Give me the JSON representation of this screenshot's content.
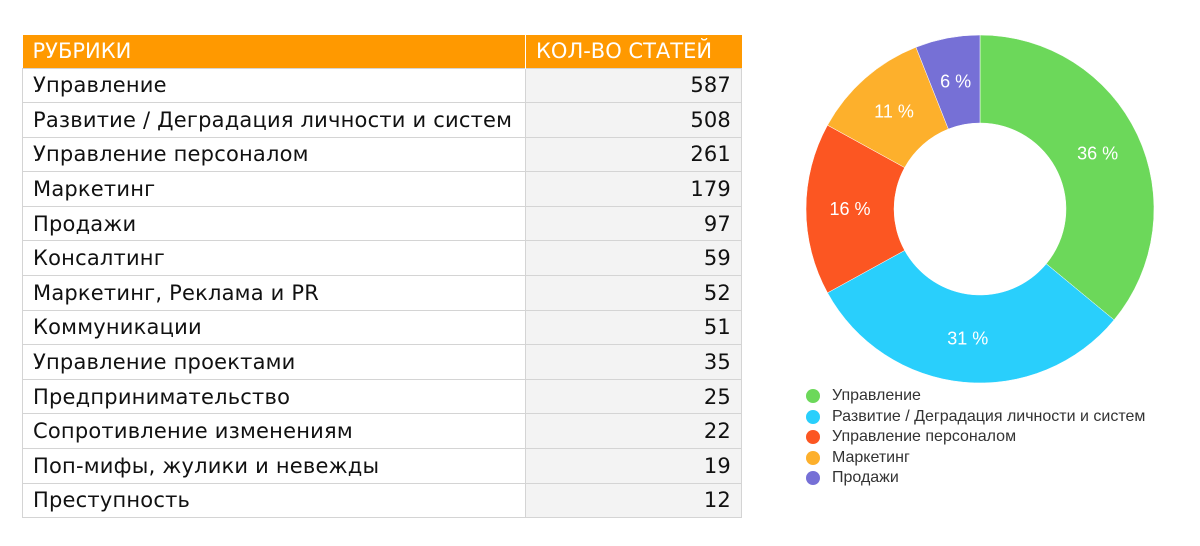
{
  "table": {
    "headers": {
      "category": "РУБРИКИ",
      "count": "КОЛ-ВО СТАТЕЙ"
    },
    "rows": [
      {
        "name": "Управление",
        "value": "587"
      },
      {
        "name": "Развитие / Деградация личности и систем",
        "value": "508"
      },
      {
        "name": "Управление персоналом",
        "value": "261"
      },
      {
        "name": "Маркетинг",
        "value": "179"
      },
      {
        "name": "Продажи",
        "value": "97"
      },
      {
        "name": "Консалтинг",
        "value": "59"
      },
      {
        "name": "Маркетинг, Реклама и PR",
        "value": "52"
      },
      {
        "name": "Коммуникации",
        "value": "51"
      },
      {
        "name": "Управление проектами",
        "value": "35"
      },
      {
        "name": "Предпринимательство",
        "value": "25"
      },
      {
        "name": "Сопротивление изменениям",
        "value": "22"
      },
      {
        "name": "Поп-мифы, жулики и невежды",
        "value": "19"
      },
      {
        "name": "Преступность",
        "value": "12"
      }
    ]
  },
  "chart_data": {
    "type": "pie",
    "variant": "donut",
    "title": "",
    "categories": [
      "Управление",
      "Развитие / Деградация личности и систем",
      "Управление персоналом",
      "Маркетинг",
      "Продажи"
    ],
    "values": [
      36,
      31,
      16,
      11,
      6
    ],
    "labels": [
      "36 %",
      "31 %",
      "16 %",
      "11 %",
      "6 %"
    ],
    "colors": [
      "#6cd85a",
      "#29cffc",
      "#fc5622",
      "#fdb02c",
      "#7670d6"
    ],
    "legend": "bottom",
    "start_angle": "12 o'clock, clockwise"
  }
}
